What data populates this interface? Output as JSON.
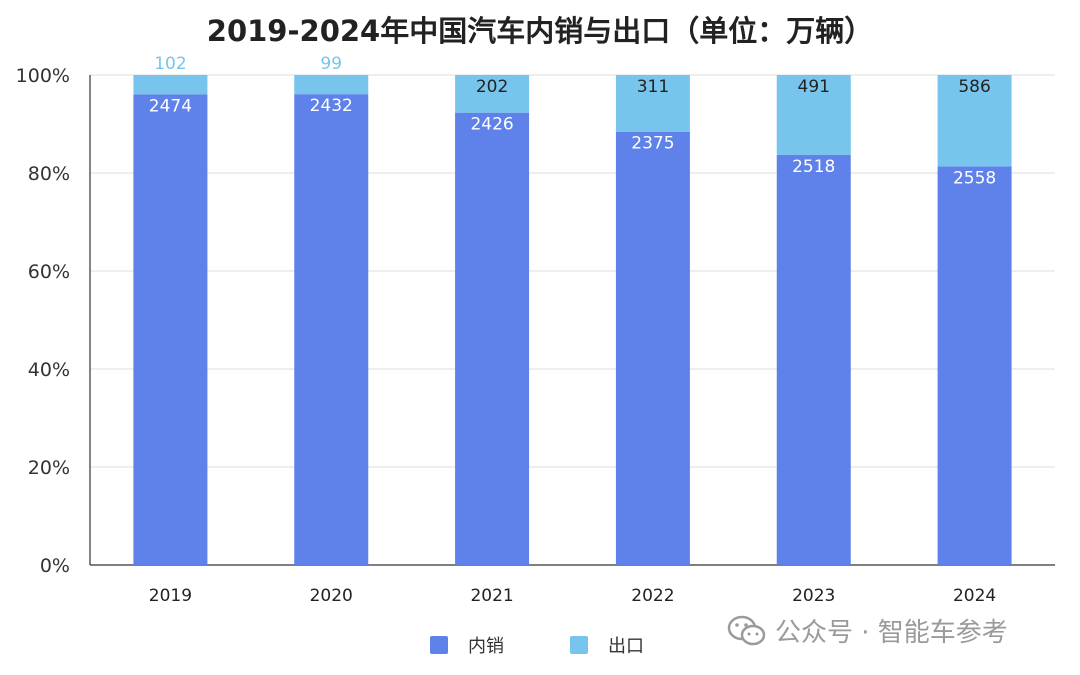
{
  "chart_data": {
    "type": "bar",
    "stacked": "percent",
    "title": "2019-2024年中国汽车内销与出口（单位：万辆）",
    "categories": [
      "2019",
      "2020",
      "2021",
      "2022",
      "2023",
      "2024"
    ],
    "series": [
      {
        "name": "内销",
        "values": [
          2474,
          2432,
          2426,
          2375,
          2518,
          2558
        ],
        "color": "#5f82ea"
      },
      {
        "name": "出口",
        "values": [
          102,
          99,
          202,
          311,
          491,
          586
        ],
        "color": "#77c5ec"
      }
    ],
    "ylim": [
      0,
      100
    ],
    "yticks": [
      "0%",
      "20%",
      "40%",
      "60%",
      "80%",
      "100%"
    ],
    "grid": true,
    "legend": "bottom",
    "xlabel": "",
    "ylabel": ""
  },
  "watermark": "公众号 · 智能车参考"
}
